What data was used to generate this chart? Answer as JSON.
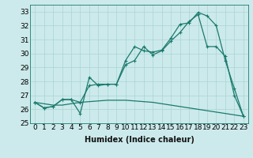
{
  "xlabel": "Humidex (Indice chaleur)",
  "background_color": "#cceaeb",
  "grid_color": "#aad4d4",
  "line_color": "#1a7a6e",
  "xlim": [
    -0.5,
    23.5
  ],
  "ylim": [
    25,
    33.5
  ],
  "yticks": [
    25,
    26,
    27,
    28,
    29,
    30,
    31,
    32,
    33
  ],
  "xticks": [
    0,
    1,
    2,
    3,
    4,
    5,
    6,
    7,
    8,
    9,
    10,
    11,
    12,
    13,
    14,
    15,
    16,
    17,
    18,
    19,
    20,
    21,
    22,
    23
  ],
  "line1_x": [
    0,
    1,
    2,
    3,
    4,
    5,
    6,
    7,
    8,
    9,
    10,
    11,
    12,
    13,
    14,
    15,
    16,
    17,
    18,
    19,
    20,
    21,
    22,
    23
  ],
  "line1_y": [
    26.5,
    26.1,
    26.2,
    26.7,
    26.7,
    25.7,
    28.3,
    27.7,
    27.8,
    27.8,
    29.5,
    30.5,
    30.2,
    30.1,
    30.25,
    31.1,
    32.1,
    32.2,
    32.95,
    32.7,
    32.0,
    29.5,
    27.5,
    25.5
  ],
  "line2_x": [
    0,
    1,
    2,
    3,
    4,
    5,
    6,
    7,
    8,
    9,
    10,
    11,
    12,
    13,
    14,
    15,
    16,
    17,
    18,
    19,
    20,
    21,
    22,
    23
  ],
  "line2_y": [
    26.5,
    26.1,
    26.2,
    26.7,
    26.7,
    26.5,
    27.7,
    27.8,
    27.8,
    27.8,
    29.2,
    29.5,
    30.5,
    29.9,
    30.2,
    30.9,
    31.5,
    32.3,
    32.8,
    30.5,
    30.5,
    29.8,
    27.0,
    25.5
  ],
  "line3_x": [
    0,
    1,
    2,
    3,
    4,
    5,
    6,
    7,
    8,
    9,
    10,
    11,
    12,
    13,
    14,
    15,
    16,
    17,
    18,
    19,
    20,
    21,
    22,
    23
  ],
  "line3_y": [
    26.5,
    26.4,
    26.3,
    26.3,
    26.4,
    26.5,
    26.55,
    26.6,
    26.65,
    26.65,
    26.65,
    26.6,
    26.55,
    26.5,
    26.4,
    26.3,
    26.2,
    26.1,
    26.0,
    25.9,
    25.8,
    25.7,
    25.6,
    25.5
  ],
  "linewidth": 0.9,
  "font_size": 6.5,
  "xlabel_fontsize": 7
}
